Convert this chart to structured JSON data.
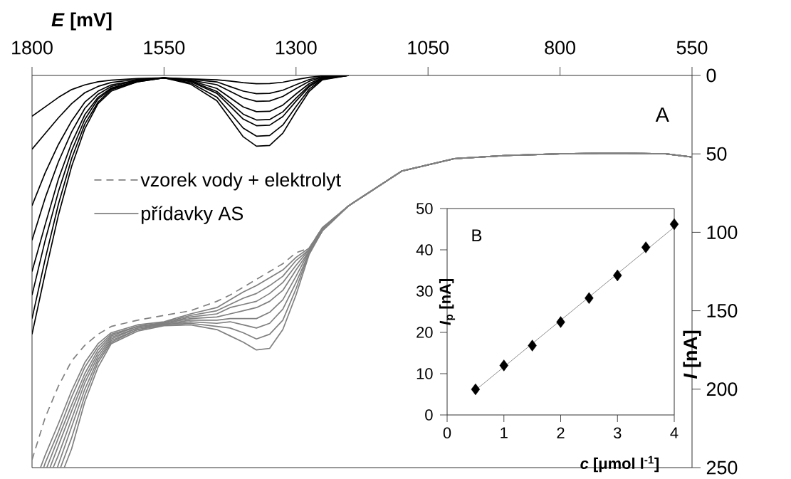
{
  "chart_data": [
    {
      "type": "line",
      "xlabel": "*E* [mV]",
      "ylabel": "*I* [nA]",
      "annotations": [
        "A"
      ],
      "legend": "left",
      "xlim": [
        1800,
        550
      ],
      "ylim": [
        250,
        0
      ],
      "xticks": [
        1800,
        1550,
        1300,
        1050,
        800,
        550
      ],
      "yticks": [
        0,
        50,
        100,
        150,
        200,
        250
      ],
      "x": [
        1800,
        1775,
        1750,
        1725,
        1700,
        1675,
        1650,
        1600,
        1550,
        1500,
        1450,
        1425,
        1400,
        1375,
        1350,
        1325,
        1300,
        1275,
        1250,
        1200,
        1150,
        1100,
        1050,
        1000,
        900,
        800,
        700,
        600,
        550
      ],
      "series": [
        {
          "color": "#000000",
          "values": [
            26,
            20,
            14,
            9,
            6,
            4,
            3,
            2,
            1.5,
            2.2,
            2.8,
            3.6,
            4.6,
            5.3,
            5.2,
            4.3,
            2.7,
            1.2,
            0.3,
            0,
            null,
            null,
            null,
            null,
            null,
            null,
            null,
            null,
            null
          ]
        },
        {
          "color": "#000000",
          "values": [
            47,
            37,
            27,
            18,
            11,
            7,
            4.5,
            2.5,
            1.5,
            2.5,
            4.1,
            7.1,
            10,
            11.6,
            11.4,
            9.4,
            5.9,
            2.6,
            0.7,
            0,
            null,
            null,
            null,
            null,
            null,
            null,
            null,
            null,
            null
          ]
        },
        {
          "color": "#000000",
          "values": [
            83,
            62,
            44,
            29,
            17,
            10,
            6,
            3,
            1.5,
            3,
            5.9,
            10.1,
            14.3,
            16.5,
            16.3,
            13.4,
            8.4,
            3.7,
            1,
            0,
            null,
            null,
            null,
            null,
            null,
            null,
            null,
            null,
            null
          ]
        },
        {
          "color": "#000000",
          "values": [
            105,
            78,
            55,
            36,
            21,
            12,
            7,
            3,
            1.5,
            3.3,
            8.3,
            14.2,
            20.1,
            23.1,
            22.9,
            18.9,
            11.8,
            5.2,
            1.4,
            0,
            null,
            null,
            null,
            null,
            null,
            null,
            null,
            null,
            null
          ]
        },
        {
          "color": "#000000",
          "values": [
            125,
            95,
            66,
            43,
            25,
            14,
            8,
            3.5,
            1.5,
            3.5,
            10.2,
            17.4,
            24.7,
            28.4,
            28.1,
            23.2,
            14.5,
            6.4,
            1.7,
            0,
            null,
            null,
            null,
            null,
            null,
            null,
            null,
            null,
            null
          ]
        },
        {
          "color": "#000000",
          "values": [
            140,
            105,
            74,
            48,
            28,
            15,
            8.5,
            3.5,
            1.5,
            3.9,
            11.4,
            19.6,
            27.8,
            32,
            31.7,
            26.2,
            16.4,
            7.2,
            2,
            0,
            null,
            null,
            null,
            null,
            null,
            null,
            null,
            null,
            null
          ]
        },
        {
          "color": "#000000",
          "values": [
            155,
            117,
            82,
            53,
            31,
            17,
            9,
            4,
            1.5,
            4.7,
            13.8,
            23.7,
            33.6,
            38.7,
            38.3,
            31.6,
            19.8,
            8.7,
            2.4,
            0,
            null,
            null,
            null,
            null,
            null,
            null,
            null,
            null,
            null
          ]
        },
        {
          "color": "#000000",
          "values": [
            165,
            126,
            89,
            58,
            34,
            18,
            10,
            4,
            1.5,
            5.5,
            16.1,
            27.6,
            39.1,
            45.1,
            44.6,
            36.8,
            23,
            10.1,
            2.8,
            0,
            null,
            null,
            null,
            null,
            null,
            null,
            null,
            null,
            null
          ]
        },
        {
          "name": "vzorek vody + elektrolyt",
          "color": "#808080",
          "line_style": "dashed",
          "values": [
            245,
            218,
            198,
            182,
            172,
            165,
            160,
            156,
            153,
            150,
            144,
            140,
            135,
            130,
            125,
            120,
            113,
            110,
            97,
            83,
            72,
            61,
            57,
            53,
            51,
            50,
            49.5,
            50,
            52
          ]
        },
        {
          "name": "přídavky AS",
          "color": "#808080",
          "x": [
            1784,
            1775,
            1750,
            1725,
            1700,
            1675,
            1650,
            1600,
            1550,
            1500,
            1450,
            1425,
            1400,
            1375,
            1350,
            1325,
            1300,
            1275,
            1250,
            1200,
            1150,
            1100,
            1050,
            1000,
            900,
            800,
            700,
            600,
            550
          ],
          "values": [
            250,
            242,
            222,
            201,
            183,
            171,
            164,
            159,
            157,
            152,
            148,
            143,
            138,
            134,
            129,
            124,
            116,
            110,
            97,
            83,
            72,
            61,
            57,
            53,
            51,
            50,
            49.5,
            50,
            52
          ]
        },
        {
          "color": "#808080",
          "x": [
            1778,
            1775,
            1750,
            1725,
            1700,
            1675,
            1650,
            1600,
            1550,
            1500,
            1450,
            1425,
            1400,
            1375,
            1350,
            1325,
            1300,
            1275,
            1250,
            1200,
            1150,
            1100,
            1050,
            1000,
            900,
            800,
            700,
            600,
            550
          ],
          "values": [
            250,
            247,
            227,
            205,
            186,
            173,
            165,
            160,
            157.5,
            153,
            150,
            146,
            142,
            139,
            134,
            128,
            118,
            111,
            97,
            83,
            72,
            61,
            57,
            53,
            51,
            50,
            49.5,
            50,
            52
          ]
        },
        {
          "color": "#808080",
          "x": [
            1772,
            1750,
            1725,
            1700,
            1675,
            1650,
            1600,
            1550,
            1500,
            1450,
            1425,
            1400,
            1375,
            1350,
            1325,
            1300,
            1275,
            1250,
            1200,
            1150,
            1100,
            1050,
            1000,
            900,
            800,
            700,
            600,
            550
          ],
          "values": [
            250,
            231,
            210,
            190,
            175,
            166,
            160,
            158,
            154,
            152,
            148,
            146,
            144,
            139,
            132,
            121,
            111,
            98,
            83,
            72,
            61,
            57,
            53,
            51,
            50,
            49.5,
            50,
            52
          ]
        },
        {
          "color": "#808080",
          "x": [
            1766,
            1750,
            1725,
            1700,
            1675,
            1650,
            1600,
            1550,
            1500,
            1450,
            1425,
            1400,
            1375,
            1350,
            1325,
            1300,
            1275,
            1250,
            1200,
            1150,
            1100,
            1050,
            1000,
            900,
            800,
            700,
            600,
            550
          ],
          "values": [
            250,
            236,
            214,
            193,
            177,
            167,
            161,
            158,
            155,
            154,
            152,
            150,
            148,
            144,
            137,
            124,
            112,
            98,
            83,
            72,
            61,
            57,
            53,
            51,
            50,
            49.5,
            50,
            52
          ]
        },
        {
          "color": "#808080",
          "x": [
            1760,
            1750,
            1725,
            1700,
            1675,
            1650,
            1600,
            1550,
            1500,
            1450,
            1425,
            1400,
            1375,
            1350,
            1325,
            1300,
            1275,
            1250,
            1200,
            1150,
            1100,
            1050,
            1000,
            900,
            800,
            700,
            600,
            550
          ],
          "values": [
            250,
            242,
            219,
            196,
            179,
            168,
            161,
            158.5,
            156,
            156,
            155,
            155,
            155,
            151,
            143,
            128,
            112,
            98,
            83,
            72,
            61,
            57,
            53,
            51,
            50,
            49.5,
            50,
            52
          ]
        },
        {
          "color": "#808080",
          "x": [
            1752,
            1750,
            1725,
            1700,
            1675,
            1650,
            1600,
            1550,
            1500,
            1450,
            1425,
            1400,
            1375,
            1350,
            1325,
            1300,
            1275,
            1250,
            1200,
            1150,
            1100,
            1050,
            1000,
            900,
            800,
            700,
            600,
            550
          ],
          "values": [
            250,
            248,
            224,
            200,
            181,
            169,
            162,
            159,
            157,
            158,
            157,
            159,
            161,
            158,
            149,
            132,
            113,
            99,
            83,
            72,
            61,
            57,
            53,
            51,
            50,
            49.5,
            50,
            52
          ]
        },
        {
          "color": "#808080",
          "x": [
            1746,
            1725,
            1700,
            1675,
            1650,
            1600,
            1550,
            1500,
            1450,
            1425,
            1400,
            1375,
            1350,
            1325,
            1300,
            1275,
            1250,
            1200,
            1150,
            1100,
            1050,
            1000,
            900,
            800,
            700,
            600,
            550
          ],
          "values": [
            250,
            231,
            204,
            183,
            170,
            162,
            159,
            158,
            160,
            161,
            164,
            168,
            165,
            156,
            136,
            113,
            99,
            83,
            72,
            61,
            57,
            53,
            51,
            50,
            49.5,
            50,
            52
          ]
        },
        {
          "color": "#808080",
          "x": [
            1739,
            1725,
            1700,
            1675,
            1650,
            1600,
            1550,
            1500,
            1450,
            1425,
            1400,
            1375,
            1350,
            1325,
            1300,
            1275,
            1250,
            1200,
            1150,
            1100,
            1050,
            1000,
            900,
            800,
            700,
            600,
            550
          ],
          "values": [
            250,
            238,
            208,
            186,
            171,
            163,
            159.5,
            159,
            162,
            166,
            170,
            175,
            174,
            162,
            140,
            114,
            99,
            83,
            72,
            61,
            57,
            53,
            51,
            50,
            49.5,
            50,
            52
          ]
        }
      ]
    },
    {
      "type": "scatter",
      "xlabel": "*c* [μmol l$^{-1}$]",
      "ylabel": "*I*$_{p}$ [nA]",
      "annotations": [
        "B"
      ],
      "marker": "diamond",
      "xlim": [
        0,
        4
      ],
      "ylim": [
        0,
        50
      ],
      "xticks": [
        0,
        1,
        2,
        3,
        4
      ],
      "yticks": [
        0,
        10,
        20,
        30,
        40,
        50
      ],
      "x": [
        0.5,
        1,
        1.5,
        2,
        2.5,
        3,
        3.5,
        4
      ],
      "series": [
        {
          "color": "#000000",
          "values": [
            6.2,
            12,
            16.8,
            22.5,
            28.3,
            33.8,
            40.6,
            46.2
          ]
        },
        {
          "type": "line",
          "marker": "none",
          "color": "#808080",
          "x": [
            0.5,
            4
          ],
          "values": [
            6,
            45.5
          ]
        }
      ]
    }
  ]
}
